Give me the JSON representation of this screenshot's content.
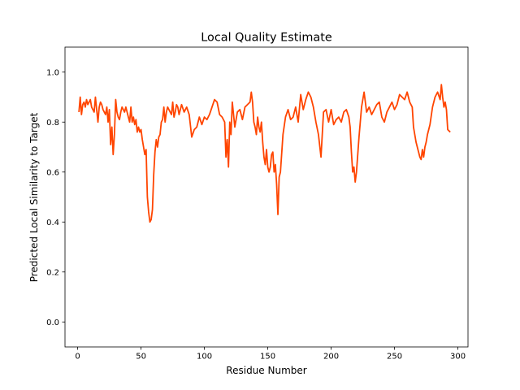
{
  "chart_data": {
    "type": "line",
    "title": "Local Quality Estimate",
    "xlabel": "Residue Number",
    "ylabel": "Predicted Local Similarity to Target",
    "xlim": [
      -10,
      308
    ],
    "ylim": [
      -0.1,
      1.1
    ],
    "xticks": [
      0,
      50,
      100,
      150,
      200,
      250,
      300
    ],
    "yticks": [
      0.0,
      0.2,
      0.4,
      0.6,
      0.8,
      1.0
    ],
    "ytick_labels": [
      "0.0",
      "0.2",
      "0.4",
      "0.6",
      "0.8",
      "1.0"
    ],
    "grid": false,
    "series": [
      {
        "color": "#ff4500",
        "x": [
          1,
          2,
          3,
          4,
          5,
          6,
          7,
          8,
          9,
          10,
          11,
          12,
          13,
          14,
          15,
          16,
          17,
          18,
          19,
          20,
          21,
          22,
          23,
          24,
          25,
          26,
          27,
          28,
          29,
          30,
          31,
          32,
          33,
          34,
          35,
          36,
          37,
          38,
          39,
          40,
          41,
          42,
          43,
          44,
          45,
          46,
          47,
          48,
          49,
          50,
          51,
          52,
          53,
          54,
          55,
          56,
          57,
          58,
          59,
          60,
          61,
          62,
          63,
          64,
          65,
          66,
          67,
          68,
          69,
          70,
          71,
          72,
          73,
          74,
          75,
          76,
          77,
          78,
          79,
          80,
          82,
          84,
          86,
          88,
          90,
          92,
          94,
          96,
          98,
          100,
          102,
          104,
          106,
          108,
          110,
          112,
          114,
          116,
          117,
          118,
          119,
          120,
          121,
          122,
          124,
          126,
          128,
          130,
          132,
          134,
          136,
          137,
          138,
          139,
          140,
          141,
          142,
          143,
          144,
          145,
          146,
          147,
          148,
          149,
          150,
          151,
          152,
          153,
          154,
          155,
          156,
          157,
          158,
          159,
          160,
          162,
          164,
          166,
          168,
          170,
          172,
          174,
          176,
          178,
          180,
          182,
          184,
          186,
          188,
          190,
          192,
          194,
          196,
          198,
          200,
          202,
          204,
          206,
          208,
          210,
          212,
          214,
          215,
          216,
          217,
          218,
          219,
          220,
          222,
          224,
          226,
          228,
          230,
          232,
          234,
          236,
          238,
          240,
          242,
          244,
          246,
          248,
          250,
          252,
          254,
          256,
          258,
          260,
          262,
          264,
          265,
          266,
          267,
          268,
          269,
          270,
          271,
          272,
          273,
          274,
          275,
          276,
          277,
          278,
          280,
          282,
          284,
          286,
          287,
          288,
          289,
          290,
          291,
          292,
          294
        ],
        "y": [
          0.84,
          0.9,
          0.83,
          0.87,
          0.88,
          0.86,
          0.89,
          0.87,
          0.88,
          0.89,
          0.86,
          0.85,
          0.84,
          0.9,
          0.85,
          0.8,
          0.86,
          0.88,
          0.87,
          0.85,
          0.84,
          0.83,
          0.86,
          0.8,
          0.85,
          0.71,
          0.78,
          0.67,
          0.75,
          0.89,
          0.84,
          0.82,
          0.81,
          0.84,
          0.86,
          0.85,
          0.84,
          0.86,
          0.84,
          0.82,
          0.8,
          0.86,
          0.8,
          0.82,
          0.79,
          0.81,
          0.76,
          0.78,
          0.76,
          0.77,
          0.73,
          0.7,
          0.67,
          0.69,
          0.5,
          0.44,
          0.4,
          0.41,
          0.45,
          0.59,
          0.68,
          0.73,
          0.7,
          0.74,
          0.75,
          0.8,
          0.81,
          0.86,
          0.8,
          0.84,
          0.86,
          0.85,
          0.84,
          0.83,
          0.88,
          0.82,
          0.84,
          0.87,
          0.86,
          0.83,
          0.87,
          0.84,
          0.86,
          0.83,
          0.74,
          0.77,
          0.78,
          0.82,
          0.79,
          0.82,
          0.81,
          0.83,
          0.86,
          0.89,
          0.88,
          0.83,
          0.82,
          0.8,
          0.66,
          0.73,
          0.62,
          0.8,
          0.75,
          0.88,
          0.78,
          0.84,
          0.85,
          0.81,
          0.86,
          0.87,
          0.88,
          0.92,
          0.88,
          0.8,
          0.78,
          0.75,
          0.82,
          0.78,
          0.76,
          0.8,
          0.72,
          0.66,
          0.63,
          0.69,
          0.62,
          0.6,
          0.62,
          0.67,
          0.68,
          0.6,
          0.63,
          0.55,
          0.43,
          0.58,
          0.6,
          0.75,
          0.82,
          0.85,
          0.81,
          0.82,
          0.86,
          0.8,
          0.91,
          0.85,
          0.89,
          0.92,
          0.9,
          0.86,
          0.8,
          0.75,
          0.66,
          0.84,
          0.85,
          0.8,
          0.85,
          0.79,
          0.81,
          0.82,
          0.8,
          0.84,
          0.85,
          0.82,
          0.78,
          0.68,
          0.6,
          0.62,
          0.56,
          0.6,
          0.74,
          0.86,
          0.92,
          0.84,
          0.86,
          0.83,
          0.85,
          0.87,
          0.88,
          0.82,
          0.8,
          0.84,
          0.86,
          0.88,
          0.85,
          0.87,
          0.91,
          0.9,
          0.89,
          0.92,
          0.88,
          0.86,
          0.78,
          0.75,
          0.72,
          0.7,
          0.68,
          0.66,
          0.65,
          0.69,
          0.66,
          0.7,
          0.72,
          0.75,
          0.77,
          0.79,
          0.86,
          0.9,
          0.92,
          0.89,
          0.95,
          0.9,
          0.86,
          0.88,
          0.85,
          0.77,
          0.76
        ]
      }
    ]
  }
}
